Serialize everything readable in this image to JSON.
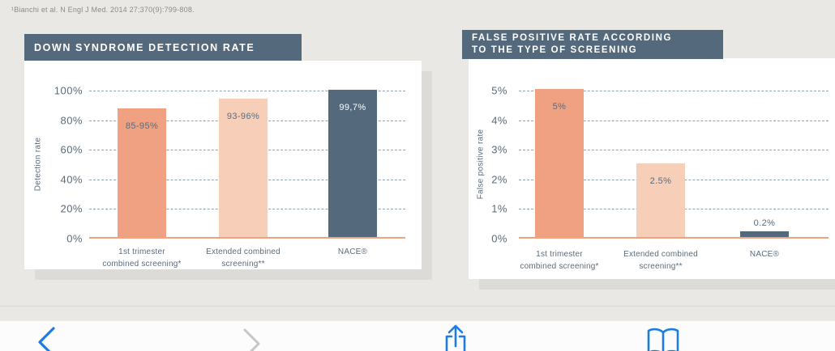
{
  "footnote": "¹Bianchi et al. N Engl J Med. 2014 27;370(9):799-808.",
  "chart_data": [
    {
      "type": "bar",
      "title": "DOWN SYNDROME DETECTION RATE",
      "ylabel": "Detection rate",
      "xlabel": "",
      "ylim": [
        0,
        100
      ],
      "yticks": [
        "100%",
        "80%",
        "60%",
        "40%",
        "20%",
        "0%"
      ],
      "grid": "dashed horizontal",
      "categories": [
        [
          "1st trimester",
          "combined screening*"
        ],
        [
          "Extended combined",
          "screening**"
        ],
        [
          "NACE®"
        ]
      ],
      "values": [
        87,
        93.5,
        99.7
      ],
      "value_labels": [
        "85-95%",
        "93-96%",
        "99,7%"
      ],
      "bar_colors": [
        "#efa181",
        "#f7cfb8",
        "#54697c"
      ],
      "value_label_colors": [
        "#5b6b7a",
        "#5b6b7a",
        "#ffffff"
      ],
      "baseline_color": "#efa181"
    },
    {
      "type": "bar",
      "title": "FALSE POSITIVE RATE ACCORDING\nTO THE TYPE OF SCREENING",
      "ylabel": "False positive rate",
      "xlabel": "",
      "ylim": [
        0,
        5
      ],
      "yticks": [
        "5%",
        "4%",
        "3%",
        "2%",
        "1%",
        "0%"
      ],
      "grid": "dashed horizontal",
      "categories": [
        [
          "1st trimester",
          "combined screening*"
        ],
        [
          "Extended combined",
          "screening**"
        ],
        [
          "NACE®"
        ]
      ],
      "values": [
        5,
        2.5,
        0.2
      ],
      "value_labels": [
        "5%",
        "2.5%",
        "0.2%"
      ],
      "bar_colors": [
        "#efa181",
        "#f7cfb8",
        "#54697c"
      ],
      "value_label_colors": [
        "#5b6b7a",
        "#5b6b7a",
        "#5b6b7a"
      ],
      "baseline_color": "#efa181"
    }
  ],
  "theme": {
    "page_bg": "#e9e8e5",
    "card_bg": "#ffffff",
    "card_shadow": "#dcdbd7",
    "header_bg": "#54697c",
    "header_text": "#ffffff",
    "text": "#5b6b7a",
    "grid_line": "#93a1ae",
    "footnote_text": "#8b8b89",
    "toolbar_bg": "#fcfcfc",
    "toolbar_blue": "#1b7de2",
    "toolbar_disabled": "#c6c6c9"
  },
  "toolbar": {
    "buttons": [
      {
        "label": "back",
        "enabled": true
      },
      {
        "label": "forward",
        "enabled": false
      },
      {
        "label": "share",
        "enabled": true
      },
      {
        "label": "bookmarks",
        "enabled": true
      }
    ]
  }
}
